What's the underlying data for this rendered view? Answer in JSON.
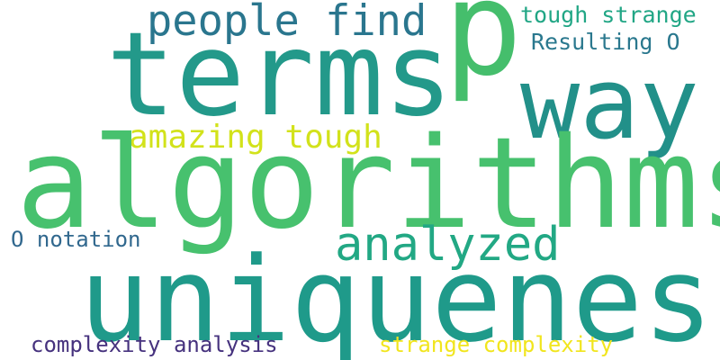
{
  "words": {
    "p": {
      "text": "p",
      "color": "#45be6c"
    },
    "terms": {
      "text": "terms",
      "color": "#23998a"
    },
    "way": {
      "text": "way",
      "color": "#229089"
    },
    "algorithms": {
      "text": "algorithms",
      "color": "#47c16e"
    },
    "uniqueness": {
      "text": "uniqueness",
      "color": "#1f9a8a"
    },
    "people_find": {
      "text": "people find",
      "color": "#2a768e"
    },
    "tough_strange": {
      "text": "tough strange",
      "color": "#21a685"
    },
    "resulting_o": {
      "text": "Resulting O",
      "color": "#2a788e"
    },
    "amazing_tough": {
      "text": "amazing tough",
      "color": "#d2e21b"
    },
    "analyzed": {
      "text": "analyzed",
      "color": "#22a884"
    },
    "o_notation": {
      "text": "O notation",
      "color": "#31688e"
    },
    "complexity_analysis": {
      "text": "complexity analysis",
      "color": "#46327e"
    },
    "strange_complexity": {
      "text": "strange complexity",
      "color": "#f1e51d"
    }
  }
}
